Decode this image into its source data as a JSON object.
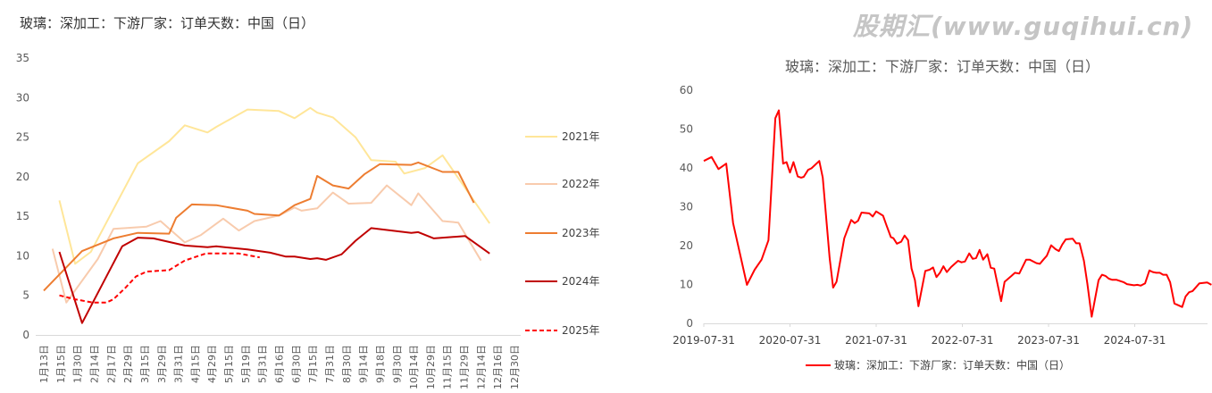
{
  "chart_data": [
    {
      "type": "line",
      "title": "玻璃：深加工：下游厂家：订单天数：中国（日）",
      "xlabel": "",
      "ylabel": "",
      "ylim": [
        0,
        35
      ],
      "yticks": [
        "0",
        "5",
        "10",
        "15",
        "20",
        "25",
        "30",
        "35"
      ],
      "categories": [
        "1月13日",
        "1月15日",
        "1月30日",
        "2月14日",
        "2月17日",
        "2月29日",
        "3月15日",
        "3月29日",
        "3月31日",
        "4月15日",
        "4月29日",
        "5月15日",
        "5月19日",
        "5月31日",
        "6月16日",
        "6月30日",
        "7月15日",
        "7月31日",
        "8月30日",
        "9月14日",
        "9月18日",
        "9月30日",
        "10月14日",
        "10月29日",
        "11月15日",
        "11月29日",
        "12月14日",
        "12月16日",
        "12月30日"
      ],
      "x_unit": "category index (fractional)",
      "legend_position": "right",
      "series": [
        {
          "name": "2021年",
          "color": "#FFE699",
          "dashed": false,
          "points": [
            [
              0.9,
              17.0
            ],
            [
              1.8,
              9.0
            ],
            [
              2.7,
              10.5
            ],
            [
              5.4,
              21.7
            ],
            [
              7.2,
              24.5
            ],
            [
              8.1,
              26.5
            ],
            [
              9.4,
              25.6
            ],
            [
              9.9,
              26.3
            ],
            [
              11.7,
              28.5
            ],
            [
              13.5,
              28.3
            ],
            [
              14.4,
              27.4
            ],
            [
              15.3,
              28.7
            ],
            [
              15.7,
              28.1
            ],
            [
              16.6,
              27.5
            ],
            [
              17.9,
              25.0
            ],
            [
              18.8,
              22.1
            ],
            [
              20.2,
              21.9
            ],
            [
              20.7,
              20.4
            ],
            [
              21.9,
              21.1
            ],
            [
              22.9,
              22.7
            ],
            [
              25.6,
              14.1
            ]
          ]
        },
        {
          "name": "2022年",
          "color": "#F8CBAD",
          "dashed": false,
          "points": [
            [
              0.5,
              10.9
            ],
            [
              1.3,
              4.1
            ],
            [
              3.1,
              9.6
            ],
            [
              4.0,
              13.4
            ],
            [
              5.9,
              13.7
            ],
            [
              6.7,
              14.4
            ],
            [
              8.1,
              11.7
            ],
            [
              9.0,
              12.6
            ],
            [
              10.3,
              14.7
            ],
            [
              11.2,
              13.2
            ],
            [
              12.1,
              14.4
            ],
            [
              13.5,
              15.1
            ],
            [
              14.4,
              16.1
            ],
            [
              14.8,
              15.7
            ],
            [
              15.7,
              16.0
            ],
            [
              16.6,
              18.0
            ],
            [
              17.5,
              16.6
            ],
            [
              18.8,
              16.7
            ],
            [
              19.7,
              18.9
            ],
            [
              21.1,
              16.4
            ],
            [
              21.5,
              17.9
            ],
            [
              22.9,
              14.4
            ],
            [
              23.8,
              14.2
            ],
            [
              25.1,
              9.4
            ]
          ]
        },
        {
          "name": "2023年",
          "color": "#ED7D31",
          "dashed": false,
          "points": [
            [
              0,
              5.6
            ],
            [
              2.2,
              10.6
            ],
            [
              4.0,
              12.2
            ],
            [
              5.4,
              12.9
            ],
            [
              7.2,
              12.8
            ],
            [
              7.6,
              14.8
            ],
            [
              8.5,
              16.5
            ],
            [
              9.9,
              16.4
            ],
            [
              11.7,
              15.7
            ],
            [
              12.1,
              15.3
            ],
            [
              13.5,
              15.1
            ],
            [
              14.4,
              16.4
            ],
            [
              15.3,
              17.2
            ],
            [
              15.7,
              20.1
            ],
            [
              16.6,
              18.9
            ],
            [
              17.5,
              18.5
            ],
            [
              18.4,
              20.3
            ],
            [
              19.3,
              21.6
            ],
            [
              21.1,
              21.5
            ],
            [
              21.5,
              21.8
            ],
            [
              22.9,
              20.6
            ],
            [
              23.8,
              20.6
            ],
            [
              24.7,
              16.7
            ]
          ]
        },
        {
          "name": "2024年",
          "color": "#C00000",
          "dashed": false,
          "points": [
            [
              0.9,
              10.5
            ],
            [
              2.2,
              1.5
            ],
            [
              4.5,
              11.2
            ],
            [
              5.4,
              12.3
            ],
            [
              6.3,
              12.2
            ],
            [
              8.1,
              11.3
            ],
            [
              9.4,
              11.1
            ],
            [
              9.9,
              11.2
            ],
            [
              11.7,
              10.8
            ],
            [
              13.0,
              10.4
            ],
            [
              13.9,
              9.9
            ],
            [
              14.4,
              9.9
            ],
            [
              15.3,
              9.6
            ],
            [
              15.7,
              9.7
            ],
            [
              16.2,
              9.5
            ],
            [
              17.1,
              10.2
            ],
            [
              17.9,
              11.9
            ],
            [
              18.8,
              13.5
            ],
            [
              21.1,
              12.9
            ],
            [
              21.5,
              13.0
            ],
            [
              22.4,
              12.2
            ],
            [
              24.2,
              12.5
            ],
            [
              25.6,
              10.3
            ]
          ]
        },
        {
          "name": "2025年",
          "color": "#FF0000",
          "dashed": true,
          "points": [
            [
              0.9,
              5.0
            ],
            [
              1.8,
              4.5
            ],
            [
              2.8,
              4.1
            ],
            [
              3.6,
              4.1
            ],
            [
              4.0,
              4.5
            ],
            [
              4.7,
              6.0
            ],
            [
              5.3,
              7.4
            ],
            [
              5.9,
              8.0
            ],
            [
              7.2,
              8.2
            ],
            [
              8.1,
              9.4
            ],
            [
              9.3,
              10.3
            ],
            [
              11.2,
              10.3
            ],
            [
              12.4,
              9.8
            ]
          ]
        }
      ]
    },
    {
      "type": "line",
      "title": "玻璃：深加工：下游厂家：订单天数：中国（日）",
      "ylim": [
        0,
        60
      ],
      "yticks": [
        "0",
        "10",
        "20",
        "30",
        "40",
        "50",
        "60"
      ],
      "xticks": [
        "2019-07-31",
        "2020-07-31",
        "2021-07-31",
        "2022-07-31",
        "2023-07-31",
        "2024-07-31"
      ],
      "x_unit": "years since 2019-07-31",
      "legend_position": "bottom",
      "series": [
        {
          "name": "玻璃：深加工：下游厂家：订单天数：中国（日）",
          "color": "#FF0000",
          "points": [
            [
              0,
              41.8
            ],
            [
              0.09,
              42.8
            ],
            [
              0.17,
              39.7
            ],
            [
              0.26,
              41.1
            ],
            [
              0.34,
              25.8
            ],
            [
              0.5,
              9.9
            ],
            [
              0.59,
              13.8
            ],
            [
              0.67,
              16.4
            ],
            [
              0.75,
              21.4
            ],
            [
              0.83,
              52.8
            ],
            [
              0.87,
              54.8
            ],
            [
              0.92,
              41.1
            ],
            [
              0.96,
              41.5
            ],
            [
              1.0,
              38.8
            ],
            [
              1.04,
              41.5
            ],
            [
              1.09,
              37.8
            ],
            [
              1.13,
              37.5
            ],
            [
              1.16,
              37.7
            ],
            [
              1.21,
              39.5
            ],
            [
              1.25,
              39.9
            ],
            [
              1.34,
              41.8
            ],
            [
              1.38,
              37.5
            ],
            [
              1.46,
              16.8
            ],
            [
              1.5,
              9.2
            ],
            [
              1.54,
              10.7
            ],
            [
              1.63,
              21.9
            ],
            [
              1.71,
              26.6
            ],
            [
              1.75,
              25.8
            ],
            [
              1.79,
              26.4
            ],
            [
              1.83,
              28.5
            ],
            [
              1.92,
              28.3
            ],
            [
              1.96,
              27.5
            ],
            [
              2.0,
              28.8
            ],
            [
              2.08,
              27.7
            ],
            [
              2.12,
              25.2
            ],
            [
              2.17,
              22.2
            ],
            [
              2.2,
              21.9
            ],
            [
              2.24,
              20.5
            ],
            [
              2.29,
              21.0
            ],
            [
              2.33,
              22.6
            ],
            [
              2.37,
              21.4
            ],
            [
              2.41,
              14.1
            ],
            [
              2.45,
              11.1
            ],
            [
              2.49,
              4.4
            ],
            [
              2.57,
              13.5
            ],
            [
              2.62,
              13.8
            ],
            [
              2.66,
              14.4
            ],
            [
              2.7,
              11.9
            ],
            [
              2.74,
              13.0
            ],
            [
              2.78,
              14.7
            ],
            [
              2.82,
              13.2
            ],
            [
              2.87,
              14.5
            ],
            [
              2.95,
              16.1
            ],
            [
              2.99,
              15.7
            ],
            [
              3.03,
              15.9
            ],
            [
              3.08,
              18.0
            ],
            [
              3.12,
              16.6
            ],
            [
              3.16,
              16.8
            ],
            [
              3.2,
              18.9
            ],
            [
              3.24,
              16.4
            ],
            [
              3.29,
              17.8
            ],
            [
              3.33,
              14.3
            ],
            [
              3.37,
              14.1
            ],
            [
              3.45,
              5.7
            ],
            [
              3.49,
              10.7
            ],
            [
              3.57,
              12.2
            ],
            [
              3.61,
              13.0
            ],
            [
              3.66,
              12.8
            ],
            [
              3.74,
              16.4
            ],
            [
              3.78,
              16.4
            ],
            [
              3.86,
              15.5
            ],
            [
              3.9,
              15.3
            ],
            [
              3.94,
              16.4
            ],
            [
              3.98,
              17.4
            ],
            [
              4.03,
              20.1
            ],
            [
              4.08,
              19.1
            ],
            [
              4.12,
              18.6
            ],
            [
              4.16,
              20.3
            ],
            [
              4.2,
              21.6
            ],
            [
              4.28,
              21.8
            ],
            [
              4.32,
              20.6
            ],
            [
              4.36,
              20.6
            ],
            [
              4.41,
              16.1
            ],
            [
              4.45,
              10.3
            ],
            [
              4.5,
              1.7
            ],
            [
              4.58,
              11.1
            ],
            [
              4.62,
              12.5
            ],
            [
              4.66,
              12.2
            ],
            [
              4.7,
              11.5
            ],
            [
              4.74,
              11.2
            ],
            [
              4.79,
              11.2
            ],
            [
              4.87,
              10.6
            ],
            [
              4.91,
              10.1
            ],
            [
              4.99,
              9.8
            ],
            [
              5.03,
              9.9
            ],
            [
              5.07,
              9.7
            ],
            [
              5.12,
              10.3
            ],
            [
              5.17,
              13.6
            ],
            [
              5.21,
              13.2
            ],
            [
              5.25,
              13.0
            ],
            [
              5.29,
              13.0
            ],
            [
              5.33,
              12.5
            ],
            [
              5.37,
              12.5
            ],
            [
              5.41,
              10.6
            ],
            [
              5.46,
              5.1
            ],
            [
              5.55,
              4.2
            ],
            [
              5.59,
              6.9
            ],
            [
              5.63,
              8.0
            ],
            [
              5.67,
              8.3
            ],
            [
              5.75,
              10.3
            ],
            [
              5.84,
              10.5
            ],
            [
              5.89,
              9.9
            ]
          ]
        }
      ]
    }
  ],
  "watermark": "股期汇(www.guqihui.cn)"
}
